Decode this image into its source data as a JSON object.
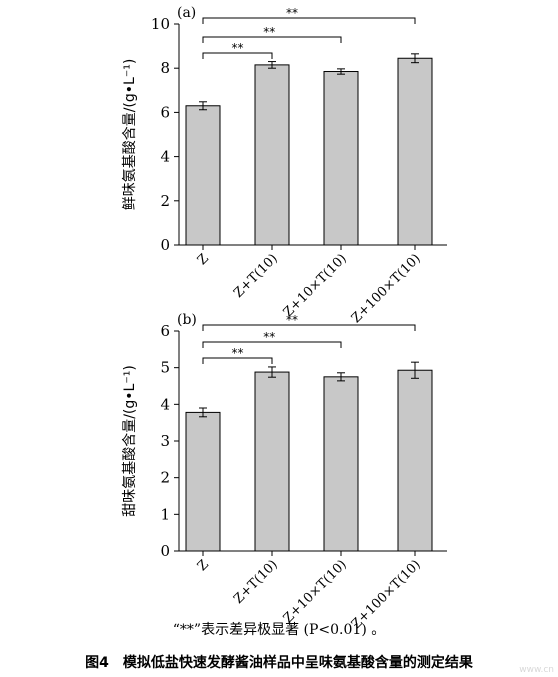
{
  "chart_data": [
    {
      "type": "bar",
      "panel_label": "(a)",
      "ylabel": "鲜味氨基酸含量/(g•L⁻¹)",
      "ylim": [
        0,
        10
      ],
      "yticks": [
        "0",
        "2",
        "4",
        "6",
        "8",
        "10"
      ],
      "categories": [
        "Z",
        "Z+T(10)",
        "Z+10×T(10)",
        "Z+100×T(10)"
      ],
      "values": [
        6.3,
        8.15,
        7.85,
        8.45
      ],
      "errors": [
        0.18,
        0.15,
        0.12,
        0.2
      ],
      "significance": [
        {
          "from": 0,
          "to": 1,
          "label": "**"
        },
        {
          "from": 0,
          "to": 2,
          "label": "**"
        },
        {
          "from": 0,
          "to": 3,
          "label": "**"
        }
      ]
    },
    {
      "type": "bar",
      "panel_label": "(b)",
      "ylabel": "甜味氨基酸含量/(g•L⁻¹)",
      "ylim": [
        0,
        6
      ],
      "yticks": [
        "0",
        "1",
        "2",
        "3",
        "4",
        "5",
        "6"
      ],
      "categories": [
        "Z",
        "Z+T(10)",
        "Z+10×T(10)",
        "Z+100×T(10)"
      ],
      "values": [
        3.78,
        4.88,
        4.75,
        4.93
      ],
      "errors": [
        0.12,
        0.14,
        0.11,
        0.22
      ],
      "significance": [
        {
          "from": 0,
          "to": 1,
          "label": "**"
        },
        {
          "from": 0,
          "to": 2,
          "label": "**"
        },
        {
          "from": 0,
          "to": 3,
          "label": "**"
        }
      ]
    }
  ],
  "note": "“**”表示差异极显著 (P<0.01) 。",
  "caption": "图4　模拟低盐快速发酵酱油样品中呈味氨基酸含量的测定结果",
  "watermark": "www.cn"
}
